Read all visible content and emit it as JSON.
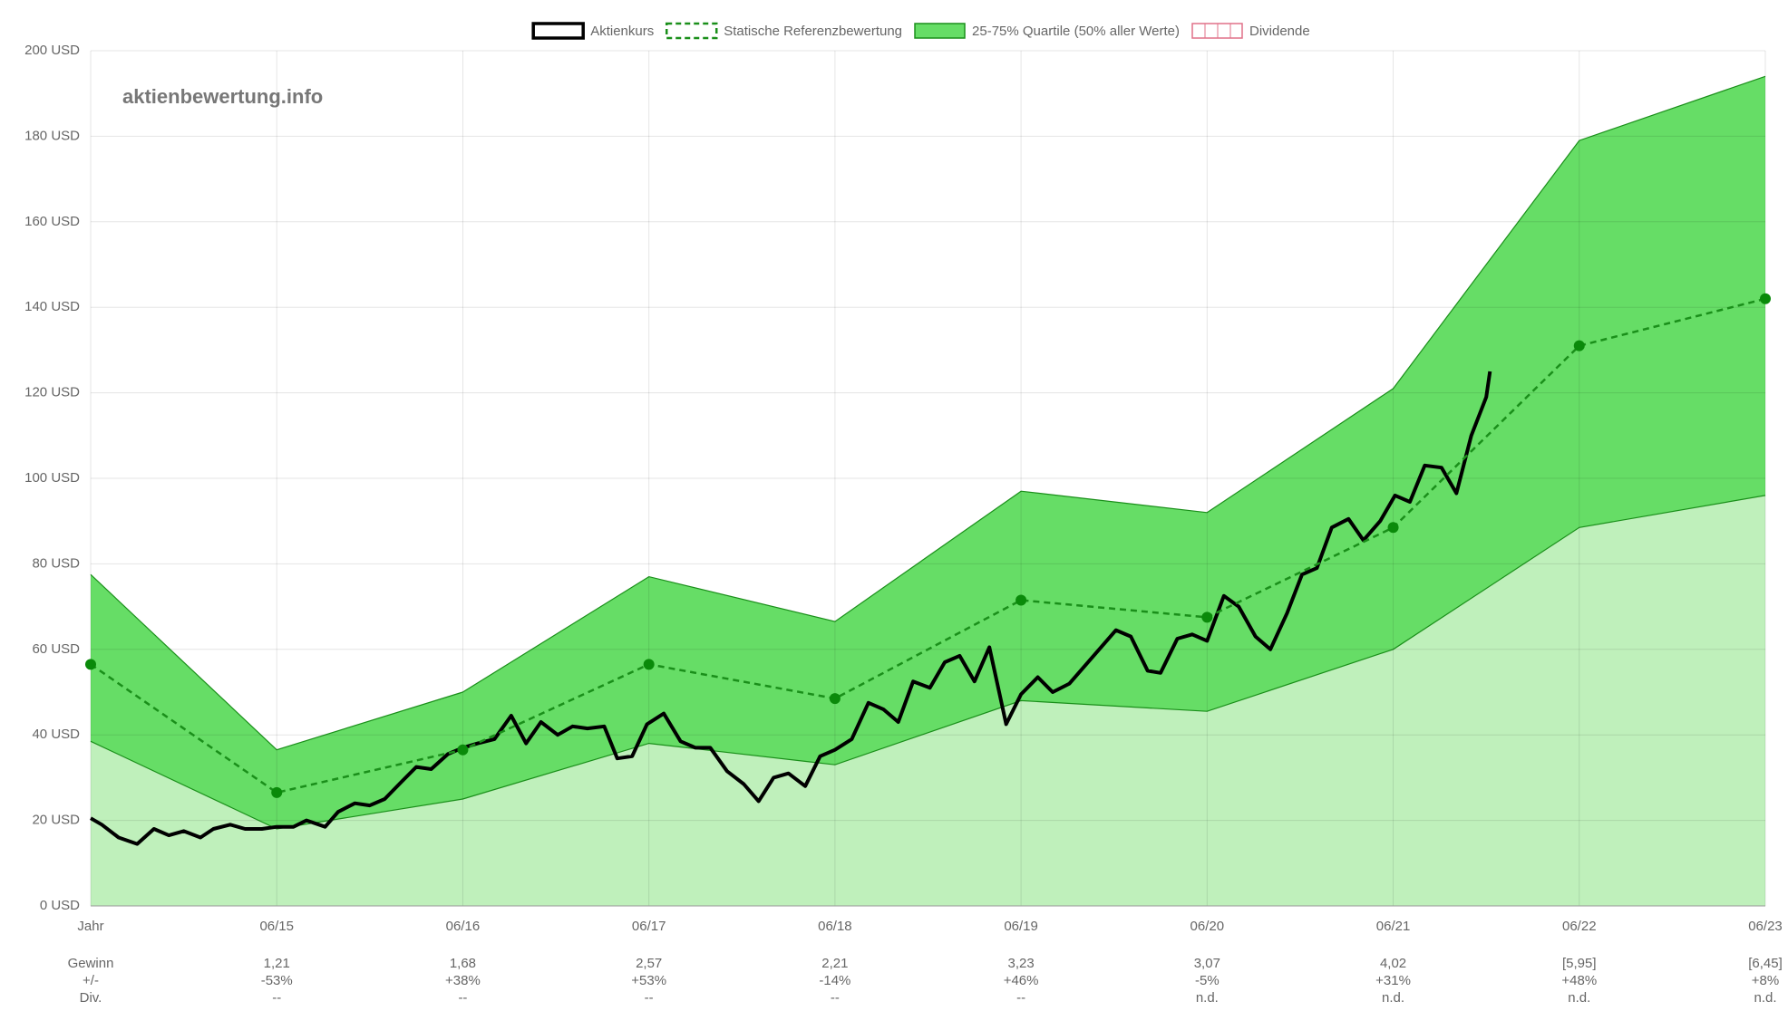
{
  "chart_data": {
    "type": "line",
    "watermark": "aktienbewertung.info",
    "xlim": [
      0,
      9
    ],
    "xticks": [
      {
        "value": 0,
        "label": "Jahr"
      },
      {
        "value": 1,
        "label": "06/15"
      },
      {
        "value": 2,
        "label": "06/16"
      },
      {
        "value": 3,
        "label": "06/17"
      },
      {
        "value": 4,
        "label": "06/18"
      },
      {
        "value": 5,
        "label": "06/19"
      },
      {
        "value": 6,
        "label": "06/20"
      },
      {
        "value": 7,
        "label": "06/21"
      },
      {
        "value": 8,
        "label": "06/22"
      },
      {
        "value": 9,
        "label": "06/23"
      }
    ],
    "ylim": [
      0,
      200
    ],
    "yticks": [
      {
        "value": 0,
        "label": "0 USD"
      },
      {
        "value": 20,
        "label": "20 USD"
      },
      {
        "value": 40,
        "label": "40 USD"
      },
      {
        "value": 60,
        "label": "60 USD"
      },
      {
        "value": 80,
        "label": "80 USD"
      },
      {
        "value": 100,
        "label": "100 USD"
      },
      {
        "value": 120,
        "label": "120 USD"
      },
      {
        "value": 140,
        "label": "140 USD"
      },
      {
        "value": 160,
        "label": "160 USD"
      },
      {
        "value": 180,
        "label": "180 USD"
      },
      {
        "value": 200,
        "label": "200 USD"
      }
    ],
    "grid": true,
    "series": [
      {
        "name": "Aktienkurs",
        "color": "#000000",
        "x": [
          0,
          0.06,
          0.15,
          0.25,
          0.34,
          0.42,
          0.5,
          0.59,
          0.66,
          0.75,
          0.83,
          0.92,
          1.0,
          1.09,
          1.16,
          1.26,
          1.33,
          1.42,
          1.5,
          1.58,
          1.67,
          1.75,
          1.83,
          1.92,
          2.0,
          2.08,
          2.17,
          2.26,
          2.34,
          2.42,
          2.51,
          2.59,
          2.67,
          2.76,
          2.83,
          2.91,
          2.99,
          3.08,
          3.17,
          3.25,
          3.33,
          3.42,
          3.51,
          3.59,
          3.67,
          3.75,
          3.84,
          3.92,
          4.0,
          4.09,
          4.18,
          4.26,
          4.34,
          4.42,
          4.51,
          4.59,
          4.67,
          4.75,
          4.83,
          4.92,
          5.0,
          5.09,
          5.17,
          5.26,
          5.34,
          5.43,
          5.51,
          5.59,
          5.68,
          5.75,
          5.84,
          5.92,
          6.0,
          6.09,
          6.17,
          6.26,
          6.34,
          6.43,
          6.51,
          6.59,
          6.67,
          6.76,
          6.84,
          6.93,
          7.01,
          7.09,
          7.17,
          7.26,
          7.34,
          7.42,
          7.5,
          7.52
        ],
        "y": [
          20.5,
          19,
          16,
          14.5,
          18,
          16.5,
          17.5,
          16,
          18,
          19,
          18,
          18,
          18.5,
          18.5,
          20,
          18.5,
          22,
          24,
          23.5,
          25,
          29,
          32.5,
          32,
          35.5,
          37,
          38,
          39,
          44.5,
          38,
          43,
          40,
          42,
          41.5,
          42,
          34.5,
          35,
          42.5,
          45,
          38.5,
          37,
          37,
          31.5,
          28.5,
          24.5,
          30,
          31,
          28,
          35,
          36.5,
          39,
          47.5,
          46,
          43,
          52.5,
          51,
          57,
          58.5,
          52.5,
          60.5,
          42.5,
          49.5,
          53.5,
          50,
          52,
          56,
          60.5,
          64.5,
          63,
          55,
          54.5,
          62.5,
          63.5,
          62,
          72.5,
          70,
          63,
          60,
          68.5,
          77.5,
          79,
          88.5,
          90.5,
          85.5,
          90,
          96,
          94.5,
          103,
          102.5,
          96.5,
          110,
          119,
          125
        ]
      },
      {
        "name": "Statische Referenzbewertung",
        "color": "#1a8f1a",
        "dashed": true,
        "x": [
          0,
          1,
          2,
          3,
          4,
          5,
          6,
          7,
          8,
          9
        ],
        "y": [
          56.5,
          26.5,
          36.5,
          56.5,
          48.5,
          71.5,
          67.5,
          88.5,
          131,
          142
        ]
      },
      {
        "name": "25-75% Quartile (50% aller Werte)",
        "color": "#66dd66",
        "lower_color": "#bff0bb",
        "x": [
          0,
          1,
          2,
          3,
          4,
          5,
          6,
          7,
          8,
          9
        ],
        "upper": [
          77.5,
          36.5,
          50,
          77,
          66.5,
          97,
          92,
          121,
          179,
          194
        ],
        "lower": [
          38.5,
          18,
          25,
          38,
          33,
          48,
          45.5,
          60,
          88.5,
          96
        ]
      },
      {
        "name": "Dividende",
        "color": "#e07088",
        "values": []
      }
    ],
    "table": {
      "row_labels": [
        "Gewinn",
        "+/-",
        "Div."
      ],
      "rows": [
        [
          "1,21",
          "1,68",
          "2,57",
          "2,21",
          "3,23",
          "3,07",
          "4,02",
          "[5,95]",
          "[6,45]"
        ],
        [
          "-53%",
          "+38%",
          "+53%",
          "-14%",
          "+46%",
          "-5%",
          "+31%",
          "+48%",
          "+8%"
        ],
        [
          "--",
          "--",
          "--",
          "--",
          "--",
          "n.d.",
          "n.d.",
          "n.d.",
          "n.d."
        ]
      ]
    }
  }
}
